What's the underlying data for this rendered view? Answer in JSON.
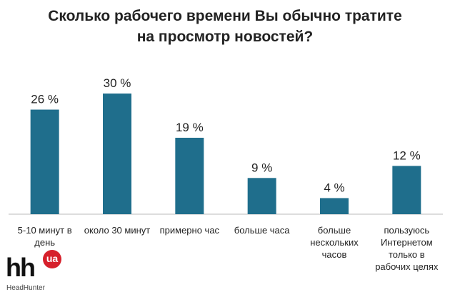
{
  "chart_data": {
    "type": "bar",
    "title": "Сколько рабочего времени Вы обычно тратите на просмотр новостей?",
    "categories": [
      "5-10 минут в день",
      "около 30 минут",
      "примерно час",
      "больше часа",
      "больше нескольких часов",
      "пользуюсь Интернетом только в рабочих целях"
    ],
    "values": [
      26,
      30,
      19,
      9,
      4,
      12
    ],
    "value_labels": [
      "26 %",
      "30 %",
      "19 %",
      "9 %",
      "4 %",
      "12 %"
    ],
    "color": "#1f6e8c"
  },
  "logo": {
    "mark": "hh",
    "badge": "ua",
    "name": "HeadHunter"
  }
}
